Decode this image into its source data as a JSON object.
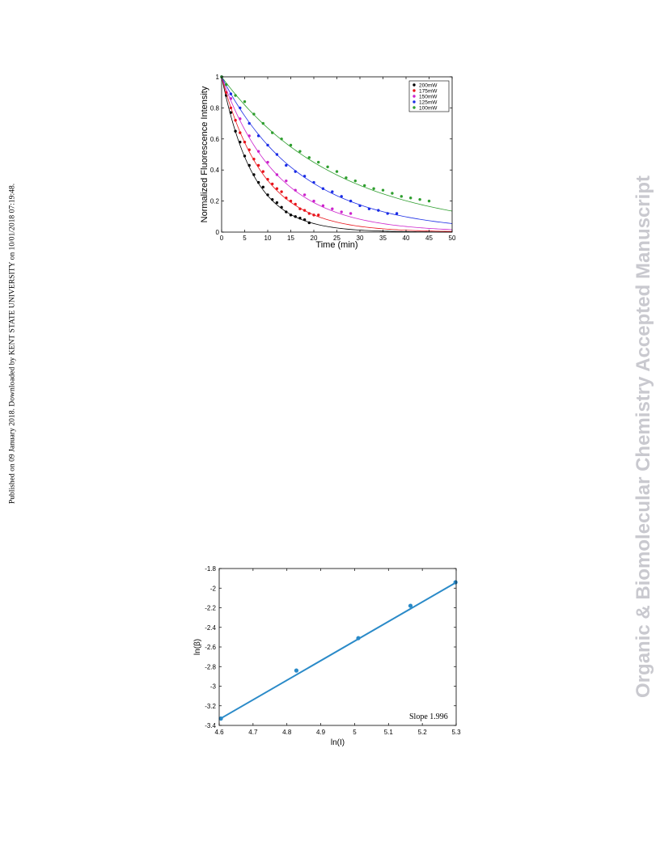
{
  "side_note_left": "Published on 09 January 2018. Downloaded by KENT STATE UNIVERSITY on 10/01/2018 07:19:48.",
  "side_watermark_right": "Organic & Biomolecular Chemistry Accepted Manuscript",
  "chart_data": [
    {
      "type": "scatter",
      "xlabel": "Time (min)",
      "ylabel": "Normalized Fluorescence Intensity",
      "xlim": [
        0,
        50
      ],
      "ylim": [
        0,
        1
      ],
      "xticks": [
        0,
        5,
        10,
        15,
        20,
        25,
        30,
        35,
        40,
        45,
        50
      ],
      "yticks": [
        0,
        0.2,
        0.4,
        0.6,
        0.8,
        1
      ],
      "legend": "top-right",
      "grid": false,
      "series": [
        {
          "name": "200mW",
          "color": "#000000",
          "fit_rate": 0.145,
          "x": [
            0,
            1,
            2,
            3,
            4,
            5,
            6,
            7,
            8,
            9,
            10,
            11,
            12,
            13,
            14,
            15,
            16,
            17,
            18,
            19
          ],
          "y": [
            1.0,
            0.88,
            0.77,
            0.65,
            0.58,
            0.49,
            0.43,
            0.37,
            0.32,
            0.29,
            0.24,
            0.21,
            0.19,
            0.16,
            0.13,
            0.11,
            0.1,
            0.09,
            0.08,
            0.06
          ]
        },
        {
          "name": "175mW",
          "color": "#e8141b",
          "fit_rate": 0.11,
          "x": [
            0,
            1,
            2,
            3,
            4,
            5,
            6,
            7,
            8,
            9,
            10,
            11,
            12,
            13,
            14,
            15,
            16,
            17,
            18,
            19,
            20,
            21
          ],
          "y": [
            1.0,
            0.9,
            0.8,
            0.72,
            0.64,
            0.58,
            0.53,
            0.47,
            0.43,
            0.39,
            0.34,
            0.31,
            0.28,
            0.26,
            0.22,
            0.2,
            0.18,
            0.15,
            0.14,
            0.12,
            0.11,
            0.11
          ]
        },
        {
          "name": "150mW",
          "color": "#cc22cc",
          "fit_rate": 0.083,
          "x": [
            0,
            2,
            4,
            6,
            8,
            10,
            12,
            14,
            16,
            18,
            20,
            22,
            24,
            26,
            28
          ],
          "y": [
            1.0,
            0.86,
            0.73,
            0.62,
            0.52,
            0.45,
            0.37,
            0.33,
            0.27,
            0.24,
            0.2,
            0.17,
            0.15,
            0.13,
            0.12
          ]
        },
        {
          "name": "125mW",
          "color": "#1a2ce6",
          "fit_rate": 0.058,
          "x": [
            0,
            2,
            4,
            6,
            8,
            10,
            12,
            14,
            16,
            18,
            20,
            22,
            24,
            26,
            28,
            30,
            32,
            34,
            36,
            38
          ],
          "y": [
            1.0,
            0.89,
            0.8,
            0.7,
            0.62,
            0.56,
            0.5,
            0.43,
            0.39,
            0.36,
            0.32,
            0.28,
            0.26,
            0.23,
            0.2,
            0.17,
            0.15,
            0.14,
            0.12,
            0.12
          ]
        },
        {
          "name": "100mW",
          "color": "#2e9e2e",
          "fit_rate": 0.04,
          "x": [
            0,
            1,
            3,
            5,
            7,
            9,
            11,
            13,
            15,
            17,
            19,
            21,
            23,
            25,
            27,
            29,
            31,
            33,
            35,
            37,
            39,
            41,
            43,
            45
          ],
          "y": [
            1.0,
            0.95,
            0.88,
            0.84,
            0.76,
            0.7,
            0.64,
            0.6,
            0.56,
            0.52,
            0.48,
            0.45,
            0.42,
            0.39,
            0.35,
            0.33,
            0.3,
            0.28,
            0.27,
            0.25,
            0.23,
            0.22,
            0.21,
            0.2
          ]
        }
      ]
    },
    {
      "type": "scatter",
      "xlabel": "ln(I)",
      "ylabel": "ln(β)",
      "xlim": [
        4.6,
        5.3
      ],
      "ylim": [
        -3.4,
        -1.8
      ],
      "xticks": [
        4.6,
        4.7,
        4.8,
        4.9,
        5,
        5.1,
        5.2,
        5.3
      ],
      "yticks": [
        -3.4,
        -3.2,
        -3,
        -2.8,
        -2.6,
        -2.4,
        -2.2,
        -2,
        -1.8
      ],
      "annotation": "Slope 1.996",
      "grid": false,
      "color": "#2a8ac8",
      "x": [
        4.605,
        4.828,
        5.011,
        5.165,
        5.298
      ],
      "y": [
        -3.33,
        -2.84,
        -2.51,
        -2.18,
        -1.94
      ],
      "fit": {
        "slope": 1.996,
        "intercept": -12.52
      }
    }
  ]
}
